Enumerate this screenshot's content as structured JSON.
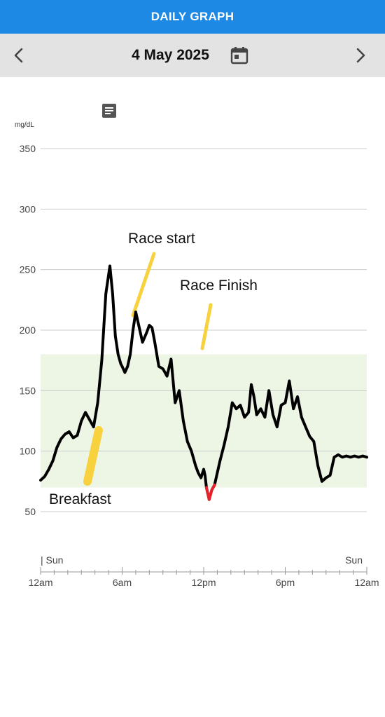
{
  "header": {
    "title": "DAILY GRAPH"
  },
  "date_nav": {
    "date": "4 May 2025",
    "prev_icon": "chevron-left-icon",
    "next_icon": "chevron-right-icon",
    "calendar_icon": "calendar-icon"
  },
  "graph": {
    "unit": "mg/dL",
    "note_icon": "note-icon",
    "annotations": {
      "race_start": "Race start",
      "race_finish": "Race Finish",
      "breakfast": "Breakfast"
    },
    "day_labels": {
      "start": "| Sun",
      "end": "Sun"
    },
    "colors": {
      "target_range": "#edf5e4",
      "line": "#000000",
      "low": "#e8202a",
      "annotation_stroke": "#f7d23e",
      "grid": "#cccccc"
    }
  },
  "chart_data": {
    "type": "line",
    "ylabel": "mg/dL",
    "y_ticks": [
      350,
      300,
      250,
      200,
      150,
      100,
      50
    ],
    "x_tick_labels": [
      "12am",
      "6am",
      "12pm",
      "6pm",
      "12am"
    ],
    "xlim": [
      0,
      24
    ],
    "ylim": [
      50,
      350
    ],
    "target_range": [
      70,
      180
    ],
    "low_threshold": 70,
    "x_unit": "hours since midnight",
    "x": [
      0.0,
      0.3,
      0.6,
      0.9,
      1.2,
      1.5,
      1.8,
      2.1,
      2.4,
      2.7,
      3.0,
      3.3,
      3.6,
      3.9,
      4.2,
      4.5,
      4.8,
      5.1,
      5.3,
      5.5,
      5.7,
      5.9,
      6.0,
      6.2,
      6.4,
      6.6,
      6.8,
      7.0,
      7.2,
      7.5,
      7.8,
      8.0,
      8.2,
      8.4,
      8.7,
      9.0,
      9.3,
      9.6,
      9.9,
      10.2,
      10.5,
      10.8,
      11.1,
      11.4,
      11.6,
      11.8,
      12.0,
      12.1,
      12.2,
      12.4,
      12.6,
      12.8,
      13.0,
      13.2,
      13.5,
      13.8,
      14.1,
      14.4,
      14.7,
      15.0,
      15.3,
      15.5,
      15.7,
      15.9,
      16.2,
      16.5,
      16.8,
      17.1,
      17.4,
      17.7,
      18.0,
      18.3,
      18.6,
      18.9,
      19.2,
      19.5,
      19.8,
      20.1,
      20.4,
      20.7,
      21.0,
      21.3,
      21.6,
      21.9,
      22.2,
      22.5,
      22.8,
      23.1,
      23.4,
      23.7,
      24.0
    ],
    "y": [
      76,
      79,
      85,
      92,
      103,
      110,
      114,
      116,
      111,
      113,
      125,
      132,
      126,
      120,
      140,
      175,
      230,
      253,
      230,
      195,
      180,
      172,
      170,
      165,
      170,
      180,
      200,
      215,
      205,
      190,
      198,
      204,
      202,
      190,
      170,
      168,
      162,
      176,
      140,
      150,
      125,
      108,
      100,
      88,
      82,
      78,
      85,
      80,
      70,
      60,
      68,
      72,
      82,
      92,
      105,
      120,
      140,
      135,
      138,
      128,
      132,
      155,
      145,
      130,
      135,
      128,
      150,
      130,
      120,
      138,
      140,
      158,
      135,
      145,
      128,
      120,
      112,
      108,
      88,
      75,
      78,
      80,
      95,
      97,
      95,
      96,
      95,
      96,
      95,
      96,
      95
    ]
  }
}
